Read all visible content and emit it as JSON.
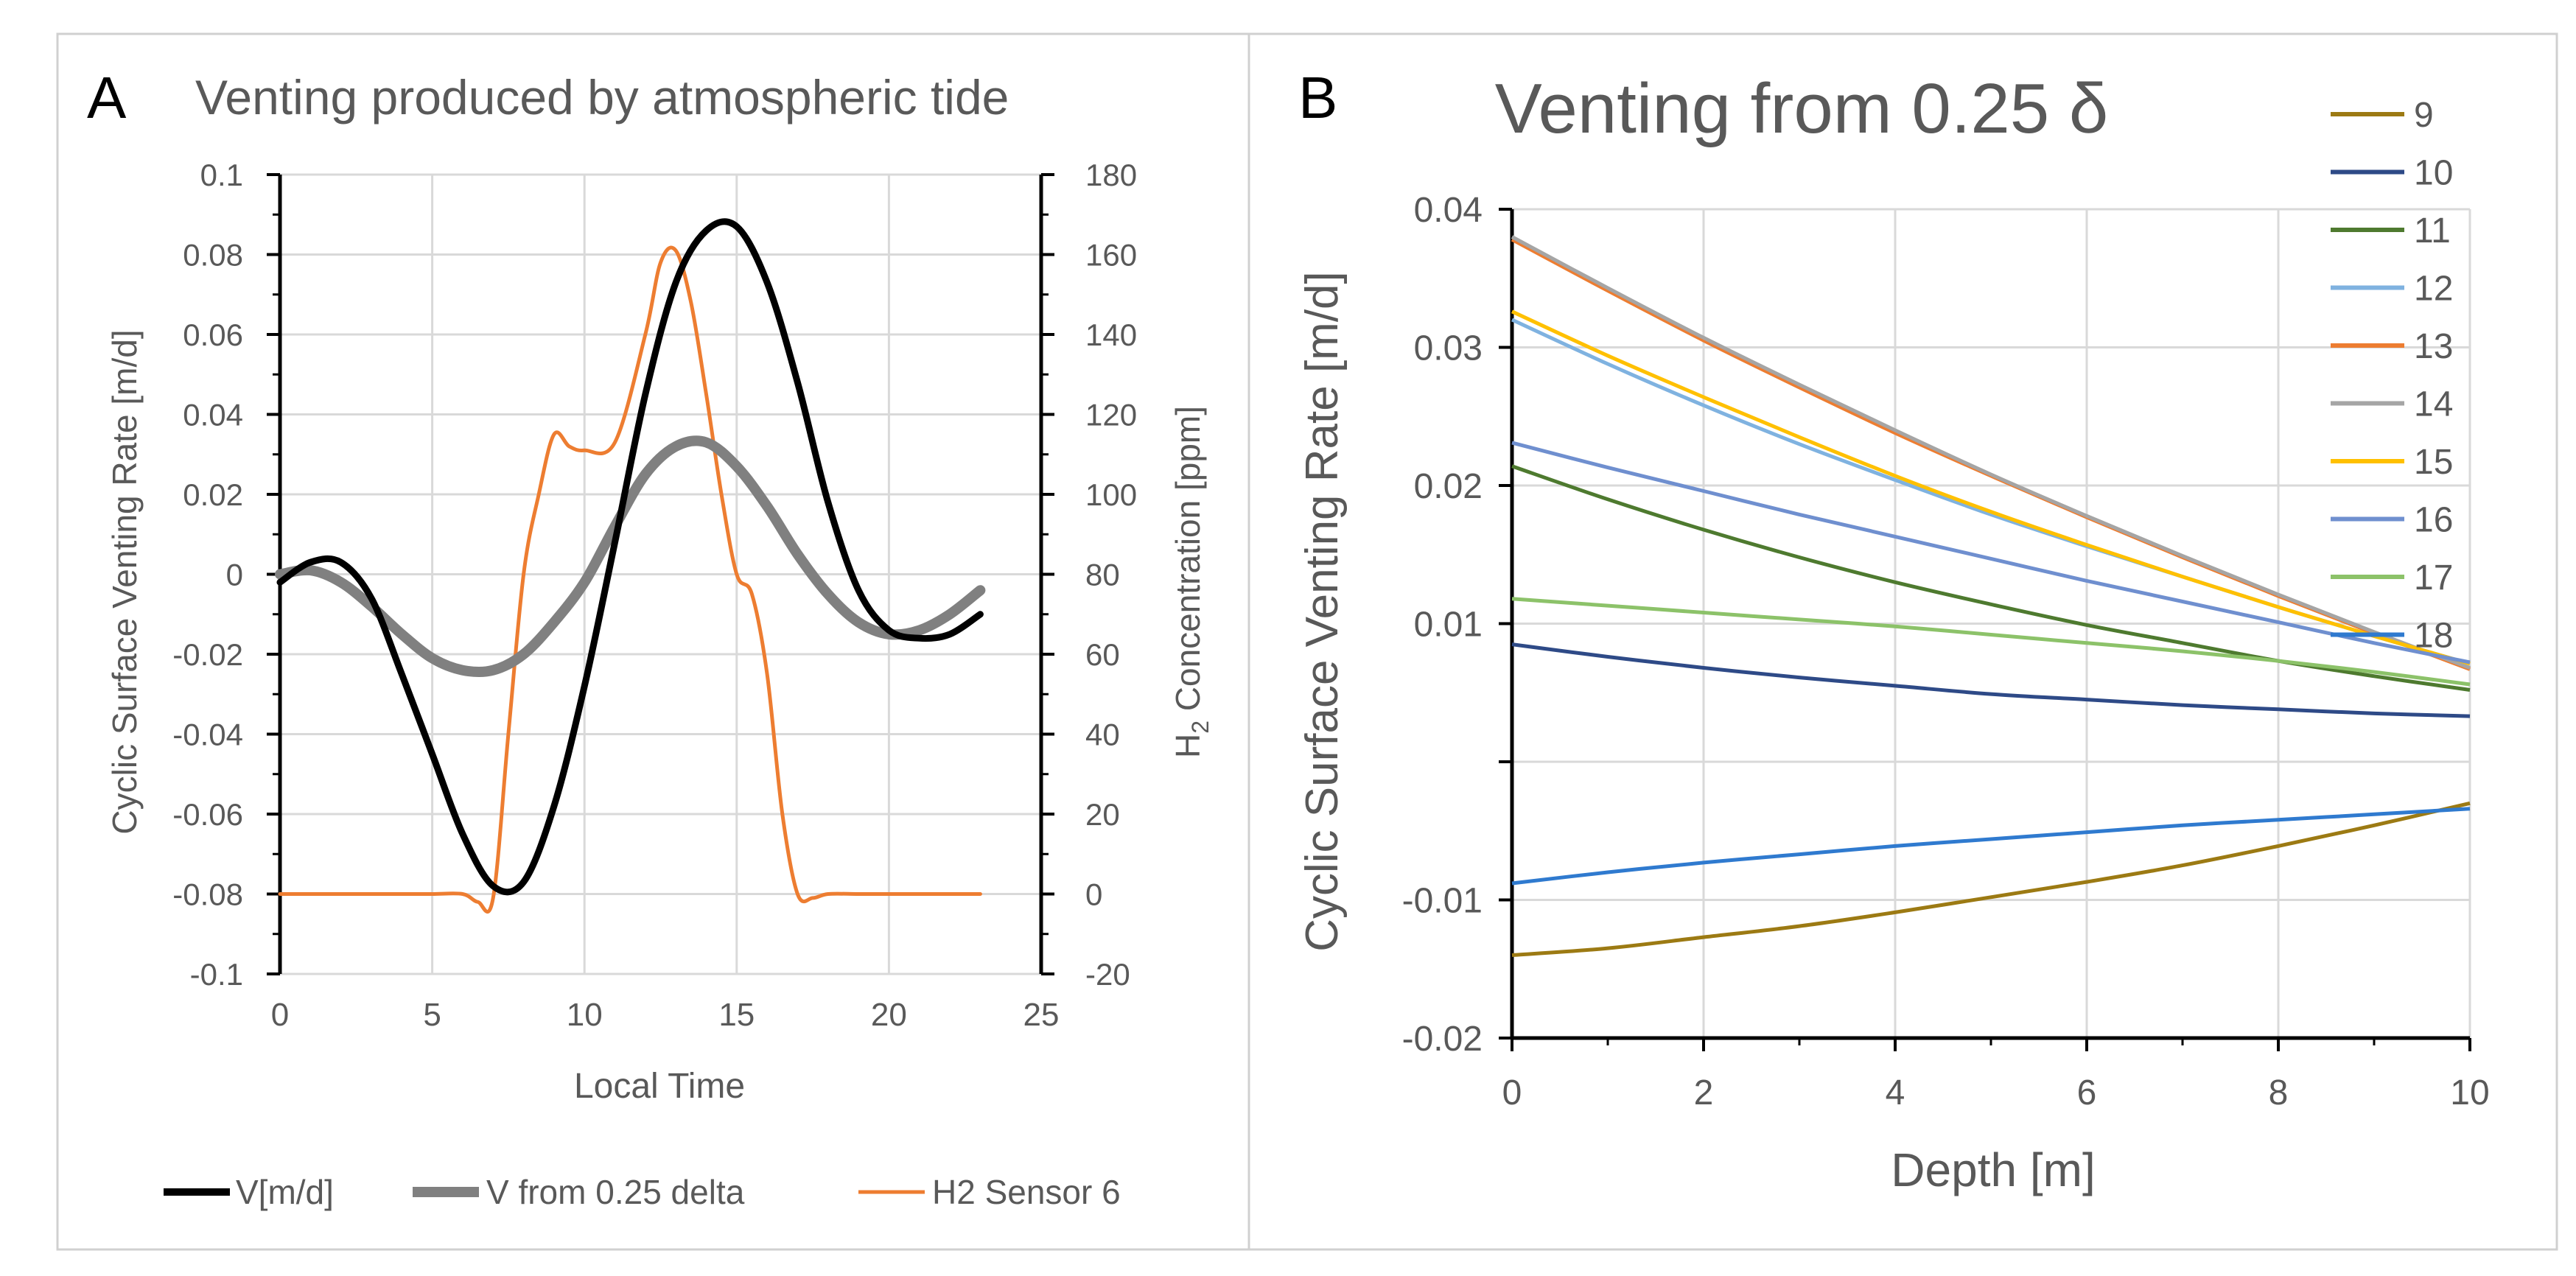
{
  "chart_data": [
    {
      "panel_label": "A",
      "type": "line",
      "title": "Venting produced by atmospheric tide",
      "xlabel": "Local Time",
      "ylabel": "Cyclic Surface Venting Rate [m/d]",
      "y2label_prefix": "H",
      "y2label_sub": "2",
      "y2label_suffix": " Concentration [ppm]",
      "xlim": [
        0,
        25
      ],
      "ylim": [
        -0.1,
        0.1
      ],
      "y2lim": [
        -20,
        180
      ],
      "x_ticks": [
        "0",
        "5",
        "10",
        "15",
        "20",
        "25"
      ],
      "y_ticks": [
        "-0.1",
        "-0.08",
        "-0.06",
        "-0.04",
        "-0.02",
        "0",
        "0.02",
        "0.04",
        "0.06",
        "0.08",
        "0.1"
      ],
      "y2_ticks": [
        "-20",
        "0",
        "20",
        "40",
        "60",
        "80",
        "100",
        "120",
        "140",
        "160",
        "180"
      ],
      "grid": true,
      "legend_position": "bottom",
      "series": [
        {
          "name": "V[m/d]",
          "color": "#000000",
          "axis": "left",
          "x": [
            0,
            1,
            2,
            3,
            4,
            5,
            6,
            7,
            8,
            9,
            10,
            11,
            12,
            13,
            14,
            15,
            16,
            17,
            18,
            19,
            20,
            21,
            22,
            23
          ],
          "values": [
            -0.002,
            0.003,
            0.003,
            -0.006,
            -0.025,
            -0.045,
            -0.065,
            -0.078,
            -0.077,
            -0.058,
            -0.028,
            0.008,
            0.045,
            0.073,
            0.086,
            0.087,
            0.073,
            0.048,
            0.018,
            -0.004,
            -0.014,
            -0.016,
            -0.015,
            -0.01
          ]
        },
        {
          "name": "V from 0.25 delta",
          "color": "#808080",
          "axis": "left",
          "x": [
            0,
            1,
            2,
            3,
            4,
            5,
            6,
            7,
            8,
            9,
            10,
            11,
            12,
            13,
            14,
            15,
            16,
            17,
            18,
            19,
            20,
            21,
            22,
            23
          ],
          "values": [
            0.0,
            0.001,
            -0.002,
            -0.008,
            -0.015,
            -0.021,
            -0.024,
            -0.024,
            -0.02,
            -0.012,
            -0.002,
            0.012,
            0.025,
            0.032,
            0.033,
            0.027,
            0.017,
            0.005,
            -0.005,
            -0.012,
            -0.015,
            -0.014,
            -0.01,
            -0.004
          ]
        },
        {
          "name": "H2 Sensor 6",
          "color": "#ED7D31",
          "axis": "right",
          "x": [
            0,
            1,
            2,
            3,
            4,
            5,
            6,
            6.5,
            7,
            7.5,
            8,
            8.5,
            9,
            9.5,
            10,
            11,
            12,
            12.5,
            13,
            13.5,
            14,
            14.5,
            15,
            15.5,
            16,
            16.5,
            17,
            17.5,
            18,
            19,
            20,
            21,
            22,
            23
          ],
          "values": [
            0,
            0,
            0,
            0,
            0,
            0,
            0,
            -2,
            -1,
            40,
            80,
            100,
            115,
            112,
            111,
            113,
            140,
            158,
            161,
            148,
            125,
            100,
            80,
            75,
            55,
            20,
            0,
            -1,
            0,
            0,
            0,
            0,
            0,
            0
          ]
        }
      ]
    },
    {
      "panel_label": "B",
      "type": "line",
      "title": "Venting from 0.25 δ",
      "xlabel": "Depth [m]",
      "ylabel": "Cyclic Surface Venting Rate [m/d]",
      "xlim": [
        0,
        10
      ],
      "ylim": [
        -0.02,
        0.04
      ],
      "x_ticks": [
        "0",
        "2",
        "4",
        "6",
        "8",
        "10"
      ],
      "y_ticks": [
        "-0.02",
        "-0.01",
        "",
        "0.01",
        "0.02",
        "0.03",
        "0.04"
      ],
      "grid": true,
      "legend_position": "right",
      "series": [
        {
          "name": "9",
          "color": "#9C7A13",
          "x": [
            0,
            1,
            2,
            3,
            4,
            5,
            6,
            7,
            8,
            9,
            10
          ],
          "values": [
            -0.014,
            -0.0135,
            -0.0127,
            -0.0119,
            -0.0109,
            -0.0098,
            -0.0087,
            -0.0075,
            -0.0061,
            -0.0046,
            -0.003
          ]
        },
        {
          "name": "10",
          "color": "#2E4A87",
          "x": [
            0,
            1,
            2,
            3,
            4,
            5,
            6,
            7,
            8,
            9,
            10
          ],
          "values": [
            0.0085,
            0.0076,
            0.0068,
            0.0061,
            0.0055,
            0.0049,
            0.0045,
            0.0041,
            0.0038,
            0.0035,
            0.0033
          ]
        },
        {
          "name": "11",
          "color": "#4E7A2F",
          "x": [
            0,
            1,
            2,
            3,
            4,
            5,
            6,
            7,
            8,
            9,
            10
          ],
          "values": [
            0.0214,
            0.019,
            0.0168,
            0.0148,
            0.013,
            0.0114,
            0.0099,
            0.0086,
            0.0073,
            0.0062,
            0.0052
          ]
        },
        {
          "name": "12",
          "color": "#7FB2E0",
          "x": [
            0,
            1,
            2,
            3,
            4,
            5,
            6,
            7,
            8,
            9,
            10
          ],
          "values": [
            0.032,
            0.0288,
            0.0258,
            0.023,
            0.0204,
            0.0179,
            0.0156,
            0.0134,
            0.0112,
            0.0091,
            0.0071
          ]
        },
        {
          "name": "13",
          "color": "#ED7D31",
          "x": [
            0,
            1,
            2,
            3,
            4,
            5,
            6,
            7,
            8,
            9,
            10
          ],
          "values": [
            0.0378,
            0.0341,
            0.0305,
            0.0271,
            0.0238,
            0.0207,
            0.0177,
            0.0148,
            0.012,
            0.0093,
            0.0067
          ]
        },
        {
          "name": "14",
          "color": "#A5A5A5",
          "x": [
            0,
            1,
            2,
            3,
            4,
            5,
            6,
            7,
            8,
            9,
            10
          ],
          "values": [
            0.038,
            0.0343,
            0.0307,
            0.0273,
            0.024,
            0.0208,
            0.0178,
            0.0149,
            0.0121,
            0.0094,
            0.0068
          ]
        },
        {
          "name": "15",
          "color": "#FFC000",
          "x": [
            0,
            1,
            2,
            3,
            4,
            5,
            6,
            7,
            8,
            9,
            10
          ],
          "values": [
            0.0326,
            0.0294,
            0.0264,
            0.0235,
            0.0207,
            0.0181,
            0.0157,
            0.0134,
            0.0112,
            0.0091,
            0.0071
          ]
        },
        {
          "name": "16",
          "color": "#6F8FCF",
          "x": [
            0,
            1,
            2,
            3,
            4,
            5,
            6,
            7,
            8,
            9,
            10
          ],
          "values": [
            0.0231,
            0.0213,
            0.0196,
            0.0179,
            0.0163,
            0.0147,
            0.0131,
            0.0116,
            0.0101,
            0.0086,
            0.0072
          ]
        },
        {
          "name": "17",
          "color": "#8CC269",
          "x": [
            0,
            1,
            2,
            3,
            4,
            5,
            6,
            7,
            8,
            9,
            10
          ],
          "values": [
            0.0118,
            0.0113,
            0.0108,
            0.0103,
            0.0098,
            0.0092,
            0.0086,
            0.008,
            0.0073,
            0.0065,
            0.0056
          ]
        },
        {
          "name": "18",
          "color": "#2F7ACF",
          "x": [
            0,
            1,
            2,
            3,
            4,
            5,
            6,
            7,
            8,
            9,
            10
          ],
          "values": [
            -0.0088,
            -0.008,
            -0.0073,
            -0.0067,
            -0.0061,
            -0.0056,
            -0.0051,
            -0.0046,
            -0.0042,
            -0.0038,
            -0.0034
          ]
        }
      ]
    }
  ]
}
